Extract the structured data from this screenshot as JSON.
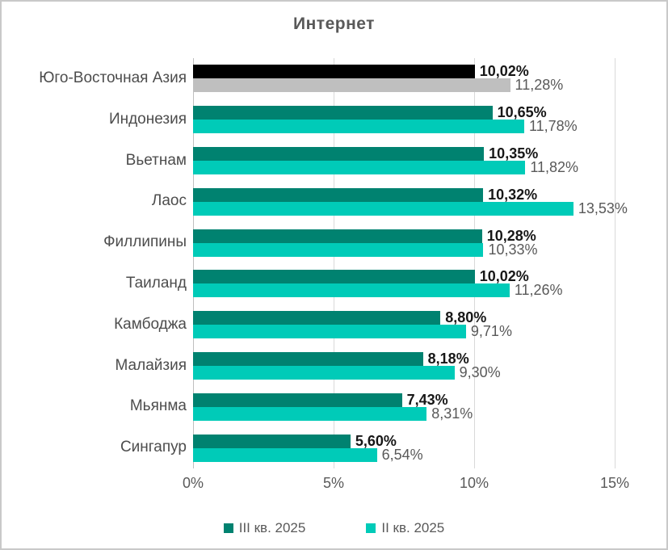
{
  "chart_data": {
    "type": "bar",
    "orientation": "horizontal",
    "title": "Интернет",
    "categories": [
      "Юго-Восточная Азия",
      "Индонезия",
      "Вьетнам",
      "Лаос",
      "Филлипины",
      "Таиланд",
      "Камбоджа",
      "Малайзия",
      "Мьянма",
      "Сингапур"
    ],
    "series": [
      {
        "name": "III кв. 2025",
        "color": "#008270",
        "values": [
          10.02,
          10.65,
          10.35,
          10.32,
          10.28,
          10.02,
          8.8,
          8.18,
          7.43,
          5.6
        ],
        "labels": [
          "10,02%",
          "10,65%",
          "10,35%",
          "10,32%",
          "10,28%",
          "10,02%",
          "8,80%",
          "8,18%",
          "7,43%",
          "5,60%"
        ]
      },
      {
        "name": "II кв. 2025",
        "color": "#00cbb8",
        "values": [
          11.28,
          11.78,
          11.82,
          13.53,
          10.33,
          11.26,
          9.71,
          9.3,
          8.31,
          6.54
        ],
        "labels": [
          "11,28%",
          "11,78%",
          "11,82%",
          "13,53%",
          "10,33%",
          "11,26%",
          "9,71%",
          "9,30%",
          "8,31%",
          "6,54%"
        ]
      }
    ],
    "highlight_category": "Юго-Восточная Азия",
    "highlight_colors": [
      "#000000",
      "#bfbfbf"
    ],
    "x_ticks": [
      "0%",
      "5%",
      "10%",
      "15%"
    ],
    "xlim": [
      0,
      15
    ],
    "grid": "vertical",
    "legend_position": "bottom",
    "value_label_decimal_separator": ","
  }
}
